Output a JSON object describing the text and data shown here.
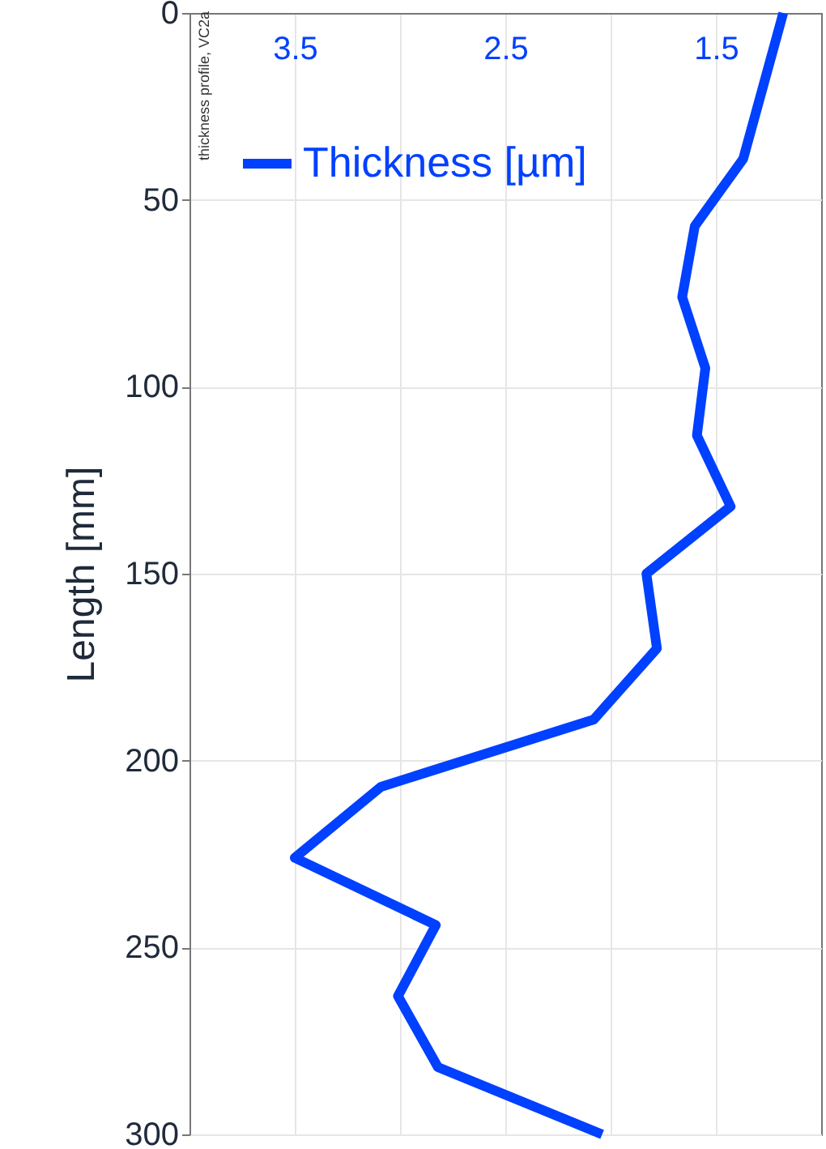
{
  "chart_data": {
    "type": "line",
    "ylabel": "Length [mm]",
    "annotations": [
      "thickness profile, VC2a"
    ],
    "series": [
      {
        "name": "Thickness [µm]",
        "color": "#0040ff",
        "x": [
          1.18,
          1.37,
          1.6,
          1.66,
          1.55,
          1.59,
          1.43,
          1.83,
          1.78,
          2.08,
          3.09,
          3.5,
          2.83,
          3.01,
          2.82,
          2.04
        ],
        "values": [
          0,
          39,
          57,
          76,
          95,
          113,
          132,
          150,
          170,
          189,
          207,
          226,
          244,
          263,
          282,
          300
        ]
      }
    ],
    "xlim": [
      4.0,
      1.0
    ],
    "xticks": [
      3.5,
      {
        "value": 3.0,
        "label": null
      },
      2.5,
      {
        "value": 2.0,
        "label": null
      },
      1.5
    ],
    "ylim": [
      300,
      0
    ],
    "yticks": [
      0,
      50,
      100,
      150,
      200,
      250,
      300
    ],
    "grid": true,
    "legend": "top left",
    "line_style": "solid",
    "marker": "none"
  }
}
